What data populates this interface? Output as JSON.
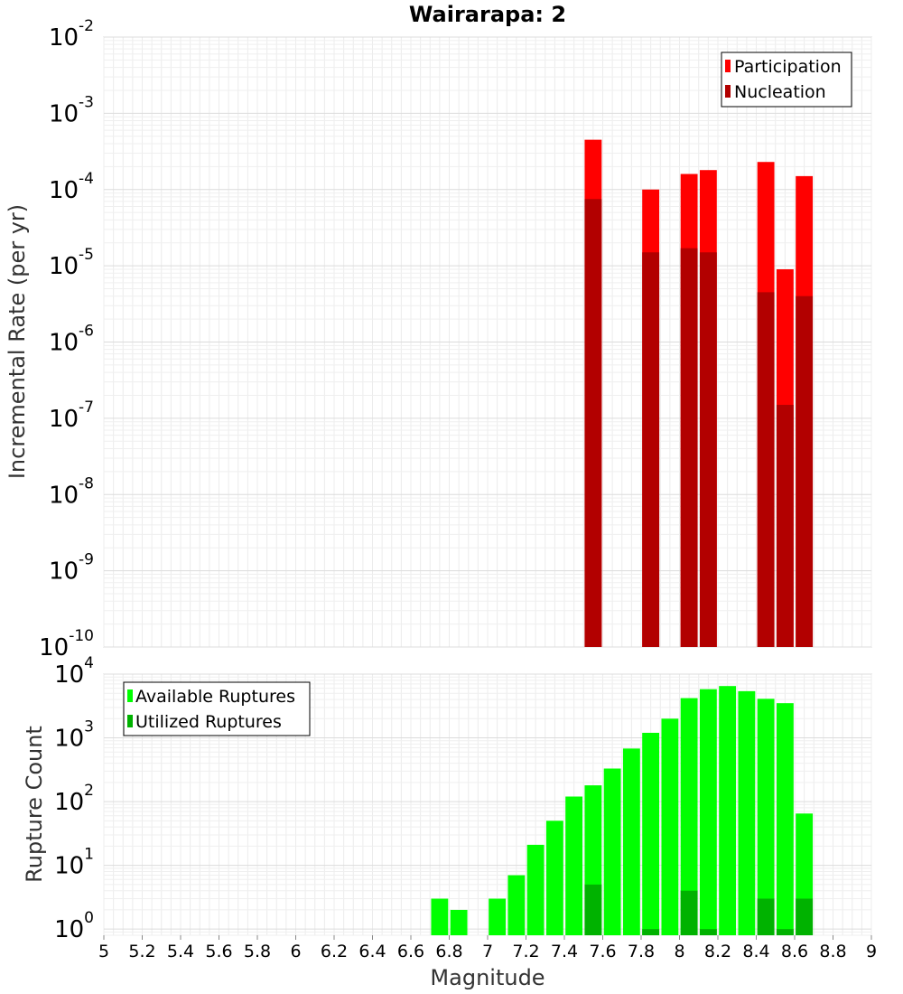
{
  "chart_data": [
    {
      "type": "bar",
      "title": "Wairarapa: 2",
      "ylabel": "Incremental Rate (per yr)",
      "yscale": "log",
      "ylim": [
        1e-10,
        0.01
      ],
      "xlim": [
        5,
        9
      ],
      "bin_width": 0.1,
      "grid": true,
      "legend_position": "top-right",
      "y_ticks": [
        {
          "base": "10",
          "exp": "-10"
        },
        {
          "base": "10",
          "exp": "-9"
        },
        {
          "base": "10",
          "exp": "-8"
        },
        {
          "base": "10",
          "exp": "-7"
        },
        {
          "base": "10",
          "exp": "-6"
        },
        {
          "base": "10",
          "exp": "-5"
        },
        {
          "base": "10",
          "exp": "-4"
        },
        {
          "base": "10",
          "exp": "-3"
        },
        {
          "base": "10",
          "exp": "-2"
        }
      ],
      "series": [
        {
          "name": "Participation",
          "color": "#ff0000",
          "x": [
            7.55,
            7.85,
            8.05,
            8.15,
            8.45,
            8.55,
            8.65
          ],
          "values": [
            0.00045,
            0.0001,
            0.00016,
            0.00018,
            0.00023,
            9e-06,
            0.00015
          ]
        },
        {
          "name": "Nucleation",
          "color": "#b20000",
          "x": [
            7.55,
            7.85,
            8.05,
            8.15,
            8.45,
            8.55,
            8.65
          ],
          "values": [
            7.5e-05,
            1.5e-05,
            1.7e-05,
            1.5e-05,
            4.5e-06,
            1.5e-07,
            4e-06
          ]
        }
      ]
    },
    {
      "type": "bar",
      "xlabel": "Magnitude",
      "ylabel": "Rupture Count",
      "yscale": "log",
      "ylim": [
        0.8,
        10000
      ],
      "xlim": [
        5,
        9
      ],
      "bin_width": 0.1,
      "grid": true,
      "legend_position": "top-left",
      "x_ticks": [
        "5",
        "5.2",
        "5.4",
        "5.6",
        "5.8",
        "6",
        "6.2",
        "6.4",
        "6.6",
        "6.8",
        "7",
        "7.2",
        "7.4",
        "7.6",
        "7.8",
        "8",
        "8.2",
        "8.4",
        "8.6",
        "8.8",
        "9"
      ],
      "y_ticks": [
        {
          "base": "10",
          "exp": "0"
        },
        {
          "base": "10",
          "exp": "1"
        },
        {
          "base": "10",
          "exp": "2"
        },
        {
          "base": "10",
          "exp": "3"
        },
        {
          "base": "10",
          "exp": "4"
        }
      ],
      "series": [
        {
          "name": "Available Ruptures",
          "color": "#00ff00",
          "x": [
            6.75,
            6.85,
            7.05,
            7.15,
            7.25,
            7.35,
            7.45,
            7.55,
            7.65,
            7.75,
            7.85,
            7.95,
            8.05,
            8.15,
            8.25,
            8.35,
            8.45,
            8.55,
            8.65
          ],
          "values": [
            3,
            2,
            3,
            7,
            21,
            50,
            120,
            180,
            330,
            680,
            1200,
            2000,
            4200,
            5800,
            6500,
            5400,
            4100,
            3500,
            65
          ]
        },
        {
          "name": "Utilized Ruptures",
          "color": "#00b200",
          "x": [
            7.55,
            7.85,
            8.05,
            8.15,
            8.45,
            8.55,
            8.65
          ],
          "values": [
            5,
            1,
            4,
            1,
            3,
            1,
            3
          ]
        }
      ]
    }
  ]
}
